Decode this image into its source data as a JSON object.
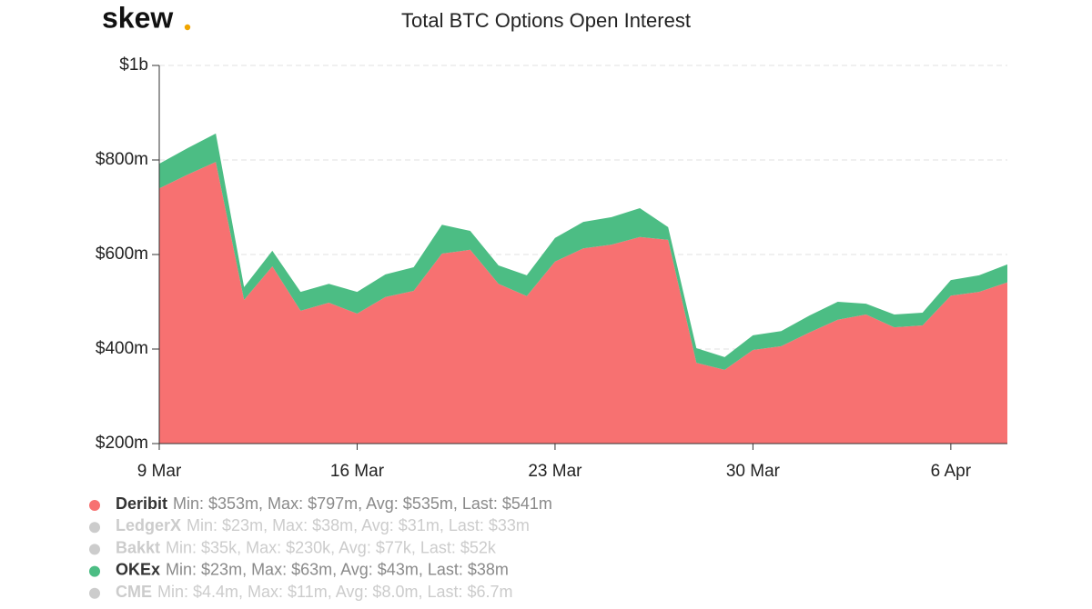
{
  "logo": "skew",
  "chart_data": {
    "type": "stacked-area",
    "title": "Total BTC Options Open Interest",
    "categories": [
      "9 Mar",
      null,
      null,
      null,
      null,
      null,
      null,
      "16 Mar",
      null,
      null,
      null,
      null,
      null,
      null,
      "23 Mar",
      null,
      null,
      null,
      null,
      null,
      null,
      "30 Mar",
      null,
      null,
      null,
      null,
      null,
      null,
      "6 Apr",
      null,
      null
    ],
    "series": [
      {
        "name": "Deribit",
        "color": "#f77171",
        "visible": true,
        "stats": "Min: $353m, Max: $797m, Avg: $535m, Last: $541m",
        "values": [
          740,
          769,
          796,
          504,
          575,
          481,
          498,
          475,
          510,
          523,
          602,
          610,
          538,
          512,
          585,
          613,
          621,
          637,
          631,
          371,
          356,
          398,
          406,
          435,
          462,
          473,
          446,
          450,
          513,
          521,
          541
        ]
      },
      {
        "name": "LedgerX",
        "color": "#cccccc",
        "visible": false,
        "stats": "Min: $23m, Max: $38m, Avg: $31m, Last: $33m"
      },
      {
        "name": "Bakkt",
        "color": "#cccccc",
        "visible": false,
        "stats": "Min: $35k, Max: $230k, Avg: $77k, Last: $52k"
      },
      {
        "name": "OKEx",
        "color": "#4cbd84",
        "visible": true,
        "stats": "Min: $23m, Max: $63m, Avg: $43m, Last: $38m",
        "values": [
          52,
          56,
          60,
          27,
          33,
          40,
          40,
          46,
          48,
          50,
          61,
          40,
          39,
          44,
          50,
          56,
          58,
          61,
          27,
          31,
          27,
          31,
          32,
          36,
          38,
          23,
          27,
          27,
          33,
          35,
          38
        ]
      },
      {
        "name": "CME",
        "color": "#cccccc",
        "visible": false,
        "stats": "Min: $4.4m, Max: $11m, Avg: $8.0m, Last: $6.7m"
      }
    ],
    "ylim": [
      200,
      1000
    ],
    "yticks": [
      {
        "value": 200,
        "label": "$200m"
      },
      {
        "value": 400,
        "label": "$400m"
      },
      {
        "value": 600,
        "label": "$600m"
      },
      {
        "value": 800,
        "label": "$800m"
      },
      {
        "value": 1000,
        "label": "$1b"
      }
    ],
    "grid": true
  }
}
